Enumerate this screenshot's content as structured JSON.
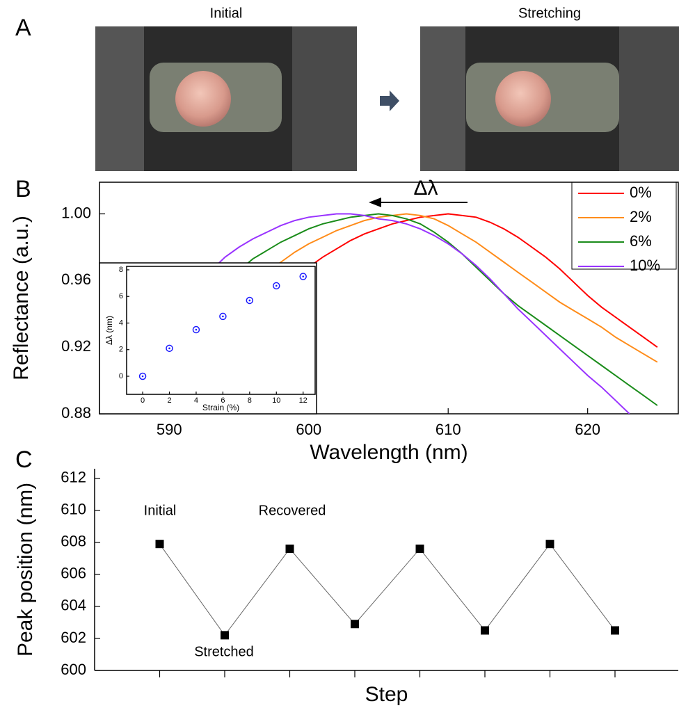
{
  "figure": {
    "panel_labels": [
      "A",
      "B",
      "C"
    ],
    "photo_titles": [
      "Initial",
      "Stretching"
    ]
  },
  "chart_data": [
    {
      "type": "line",
      "x_label": "Wavelength (nm)",
      "y_label": "Reflectance (a.u.)",
      "x": [
        593,
        594,
        595,
        596,
        597,
        598,
        599,
        600,
        601,
        602,
        603,
        604,
        605,
        606,
        607,
        608,
        609,
        610,
        611,
        612,
        613,
        614,
        615,
        616,
        617,
        618,
        619,
        620,
        621,
        622,
        623,
        624,
        625
      ],
      "series": [
        {
          "name": "0%",
          "color": "#ff0000",
          "values": [
            null,
            null,
            null,
            null,
            null,
            0.955,
            0.962,
            0.968,
            0.974,
            0.979,
            0.984,
            0.988,
            0.991,
            0.994,
            0.996,
            0.998,
            0.999,
            1.0,
            0.999,
            0.998,
            0.995,
            0.991,
            0.986,
            0.98,
            0.974,
            0.967,
            0.959,
            0.951,
            0.944,
            0.938,
            0.932,
            0.926,
            0.92
          ]
        },
        {
          "name": "2%",
          "color": "#ff8c1a",
          "values": [
            null,
            null,
            null,
            0.958,
            0.965,
            0.971,
            0.977,
            0.982,
            0.986,
            0.99,
            0.993,
            0.996,
            0.998,
            0.999,
            1.0,
            0.999,
            0.997,
            0.993,
            0.988,
            0.983,
            0.977,
            0.971,
            0.965,
            0.959,
            0.953,
            0.947,
            0.942,
            0.937,
            0.932,
            0.926,
            0.921,
            0.916,
            0.911
          ]
        },
        {
          "name": "6%",
          "color": "#1a8c1a",
          "values": [
            null,
            null,
            0.966,
            0.973,
            0.978,
            0.983,
            0.987,
            0.991,
            0.994,
            0.996,
            0.998,
            0.999,
            1.0,
            0.999,
            0.997,
            0.994,
            0.989,
            0.983,
            0.976,
            0.968,
            0.96,
            0.952,
            0.945,
            0.939,
            0.933,
            0.927,
            0.921,
            0.915,
            0.909,
            0.903,
            0.897,
            0.891,
            0.885
          ]
        },
        {
          "name": "10%",
          "color": "#9933ff",
          "values": [
            0.966,
            0.974,
            0.98,
            0.985,
            0.989,
            0.993,
            0.996,
            0.998,
            0.999,
            1.0,
            1.0,
            0.999,
            0.997,
            0.996,
            0.994,
            0.991,
            0.987,
            0.982,
            0.976,
            0.969,
            0.961,
            0.952,
            0.943,
            0.935,
            0.927,
            0.919,
            0.911,
            0.903,
            0.896,
            0.888,
            0.88,
            null,
            null
          ]
        }
      ],
      "xlim": [
        585,
        626.5
      ],
      "ylim": [
        0.88,
        1.019
      ],
      "xticks": [
        590,
        600,
        610,
        620
      ],
      "yticks": [
        0.88,
        0.92,
        0.96,
        {
          "value": 1,
          "label": "1.00"
        }
      ],
      "legend": "upper right",
      "annotations": [
        "Δλ"
      ]
    },
    {
      "type": "scatter",
      "x_label": "Strain (%)",
      "y_label": "Δλ (nm)",
      "x": [
        0,
        2,
        4,
        6,
        8,
        10,
        12
      ],
      "values": [
        0,
        2.1,
        3.5,
        4.5,
        5.7,
        6.8,
        7.5
      ],
      "color": "#1a1aff",
      "xlim": [
        -1.2,
        12.9
      ],
      "ylim": [
        -1.36,
        8.26
      ],
      "xticks": [
        0,
        2,
        4,
        6,
        8,
        10,
        12
      ],
      "yticks": [
        0,
        2,
        4,
        6,
        8
      ]
    },
    {
      "type": "line",
      "x_label": "Step",
      "y_label": "Peak position (nm)",
      "categories": [
        null,
        null,
        null,
        null,
        null,
        null,
        null,
        null
      ],
      "values": [
        607.9,
        602.2,
        607.6,
        602.9,
        607.6,
        602.5,
        607.9,
        602.5
      ],
      "color": "#000000",
      "line_color": "#666666",
      "ylim": [
        600,
        612.6
      ],
      "yticks": [
        600,
        602,
        604,
        606,
        608,
        610,
        612
      ],
      "annotations": [
        "Initial",
        "Stretched",
        "Recovered"
      ]
    }
  ]
}
